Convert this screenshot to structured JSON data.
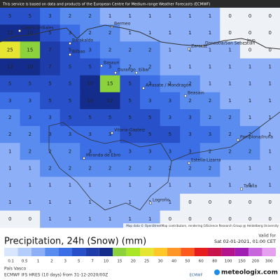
{
  "banner": "This service is based on data and products of the European Centre for Medium-range Weather Forecasts (ECMWF)",
  "map": {
    "grid": [
      [
        5,
        5,
        3,
        2,
        2,
        1,
        1,
        1,
        1,
        1,
        1,
        0,
        0,
        0
      ],
      [
        12,
        10,
        5,
        3,
        2,
        2,
        1,
        1,
        1,
        1,
        1,
        0,
        0,
        0
      ],
      [
        25,
        15,
        7,
        5,
        3,
        2,
        2,
        2,
        1,
        1,
        1,
        1,
        0,
        0
      ],
      [
        12,
        10,
        7,
        5,
        5,
        3,
        2,
        2,
        1,
        1,
        1,
        1,
        1,
        1
      ],
      [
        5,
        5,
        5,
        5,
        10,
        15,
        5,
        3,
        2,
        2,
        1,
        1,
        1,
        1
      ],
      [
        3,
        3,
        5,
        5,
        10,
        12,
        5,
        3,
        3,
        2,
        2,
        1,
        1,
        1
      ],
      [
        2,
        3,
        3,
        5,
        5,
        5,
        5,
        5,
        3,
        3,
        2,
        2,
        1,
        1
      ],
      [
        2,
        2,
        3,
        3,
        3,
        3,
        5,
        5,
        5,
        3,
        3,
        2,
        2,
        1
      ],
      [
        1,
        2,
        2,
        2,
        3,
        3,
        3,
        3,
        3,
        3,
        2,
        2,
        2,
        1
      ],
      [
        1,
        1,
        2,
        2,
        2,
        2,
        2,
        2,
        2,
        2,
        2,
        1,
        1,
        1
      ],
      [
        1,
        1,
        1,
        1,
        1,
        1,
        1,
        1,
        1,
        1,
        1,
        1,
        1,
        1
      ],
      [
        1,
        1,
        1,
        1,
        1,
        1,
        1,
        1,
        1,
        0,
        0,
        0,
        0,
        0
      ],
      [
        0,
        0,
        1,
        1,
        1,
        1,
        1,
        1,
        0,
        0,
        0,
        0,
        0,
        0
      ]
    ],
    "cities": [
      "Castro Urdiales",
      "Bermeo",
      "Barakaldo",
      "Bilbao",
      "Basauri",
      "Durango",
      "Eibar",
      "Zarautz",
      "Donostia/San Sebastián",
      "Irun",
      "Arrasate / Mondragón",
      "Beasain",
      "Vitoria-Gasteiz",
      "Miranda de Ebro",
      "Estella-Lizarra",
      "Pamplona/Iruña",
      "Tafalla",
      "Logroño"
    ],
    "attribution": "Map data © OpenStreetMap contributors, rendering GIScience Research Group @ Heidelberg University"
  },
  "title": "Precipitation, 24h (Snow) (mm)",
  "valid_label": "Valid for",
  "valid_time": "Sat 02-01-2021, 01:00 CET",
  "scale": {
    "values": [
      0.1,
      0.5,
      1,
      2,
      3,
      5,
      7,
      10,
      15,
      20,
      25,
      30,
      40,
      50,
      60,
      80,
      100,
      150,
      200,
      300
    ],
    "colors": [
      "#d9e6ff",
      "#b4cdff",
      "#8caff8",
      "#5a8cf0",
      "#3c6ee6",
      "#2850c8",
      "#1e3caa",
      "#142d8c",
      "#8cd23c",
      "#aae628",
      "#e6e632",
      "#ffc828",
      "#ff9628",
      "#ff5a1e",
      "#e61e1e",
      "#c8144b",
      "#b4148c",
      "#a01eb4",
      "#c864dc",
      "#e6a0f0"
    ],
    "zero_color": "#eef1f6"
  },
  "footer": {
    "region": "País Vasco",
    "model": "ECMWF IFS HRES (10 days) from 31-12-2020/00Z",
    "ecmwf": "ECMWF",
    "brand": "meteologix.com"
  }
}
